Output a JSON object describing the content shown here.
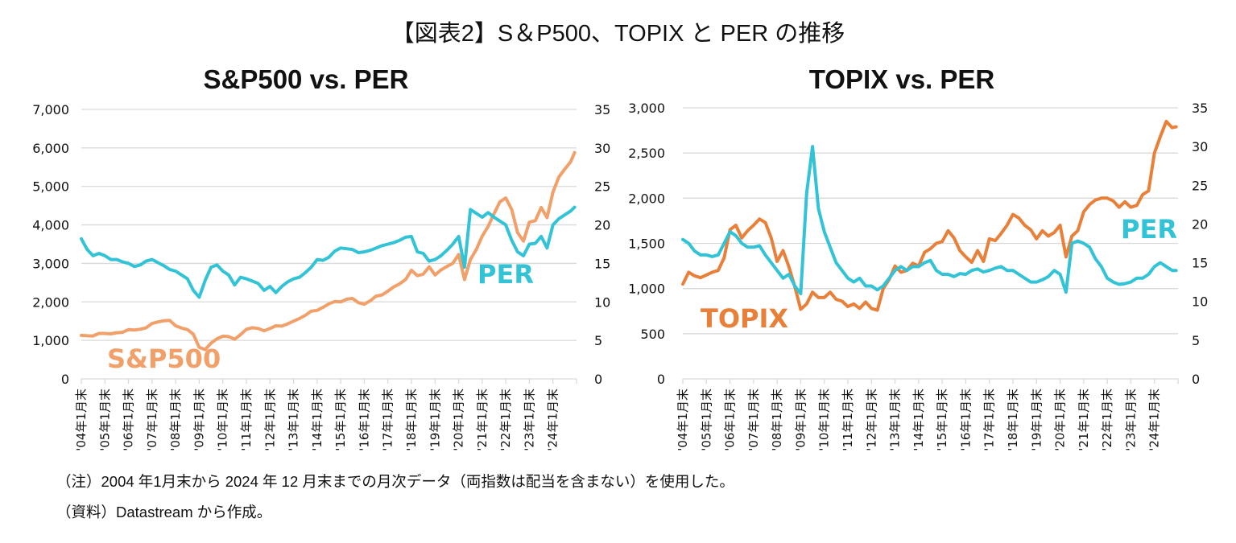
{
  "title": "【図表2】S＆P500、TOPIX と PER の推移",
  "notes": {
    "note": "（注）2004 年1月末から 2024 年 12 月末までの月次データ（両指数は配当を含まない）を使用した。",
    "source": "（資料）Datastream から作成。"
  },
  "colors": {
    "index_sp": "#f0a068",
    "index_topix": "#e8803a",
    "per": "#33c3d6",
    "grid": "#d9d9d9"
  },
  "chart_data": [
    {
      "type": "line",
      "title": "S&P500 vs. PER",
      "xlabel": "",
      "ylabel": "",
      "y2label": "",
      "x_tick_labels": [
        "'04年1月末",
        "'05年1月末",
        "'06年1月末",
        "'07年1月末",
        "'08年1月末",
        "'09年1月末",
        "'10年1月末",
        "'11年1月末",
        "'12年1月末",
        "'13年1月末",
        "'14年1月末",
        "'15年1月末",
        "'16年1月末",
        "'17年1月末",
        "'18年1月末",
        "'19年1月末",
        "'20年1月末",
        "'21年1月末",
        "'22年1月末",
        "'23年1月末",
        "'24年1月末"
      ],
      "y_tick_labels": [
        "0",
        "1,000",
        "2,000",
        "3,000",
        "4,000",
        "5,000",
        "6,000",
        "7,000"
      ],
      "y2_tick_labels": [
        "0",
        "5",
        "10",
        "15",
        "20",
        "25",
        "30",
        "35"
      ],
      "ylim": [
        0,
        7000
      ],
      "y2lim": [
        0,
        35
      ],
      "x_start": "2004-01",
      "x_end": "2024-12",
      "x_step_months": 3,
      "grid": true,
      "series": [
        {
          "name": "S&P500",
          "axis": "left",
          "label": "S&P500",
          "values": [
            1130,
            1120,
            1115,
            1180,
            1180,
            1170,
            1200,
            1210,
            1280,
            1270,
            1290,
            1330,
            1440,
            1480,
            1510,
            1520,
            1380,
            1320,
            1280,
            1160,
            820,
            760,
            930,
            1040,
            1110,
            1100,
            1030,
            1150,
            1290,
            1330,
            1310,
            1250,
            1310,
            1380,
            1370,
            1430,
            1500,
            1570,
            1650,
            1760,
            1780,
            1860,
            1950,
            2010,
            2000,
            2070,
            2090,
            1980,
            1940,
            2030,
            2150,
            2180,
            2280,
            2390,
            2470,
            2580,
            2820,
            2680,
            2720,
            2910,
            2700,
            2830,
            2920,
            3000,
            3230,
            2580,
            3100,
            3360,
            3710,
            3960,
            4290,
            4600,
            4700,
            4400,
            3800,
            3580,
            4070,
            4110,
            4450,
            4190,
            4850,
            5240,
            5450,
            5640,
            5880
          ],
          "color_key": "index_sp"
        },
        {
          "name": "PER",
          "axis": "right",
          "label": "PER",
          "values": [
            18.2,
            16.8,
            16.0,
            16.3,
            16.0,
            15.5,
            15.5,
            15.2,
            15.0,
            14.6,
            14.8,
            15.3,
            15.5,
            15.1,
            14.7,
            14.2,
            14.0,
            13.5,
            13.0,
            11.5,
            10.6,
            12.8,
            14.5,
            14.8,
            14.0,
            13.5,
            12.2,
            13.2,
            13.0,
            12.7,
            12.4,
            11.5,
            12.0,
            11.2,
            12.0,
            12.6,
            13.0,
            13.2,
            13.8,
            14.5,
            15.5,
            15.4,
            15.8,
            16.6,
            17.0,
            16.9,
            16.8,
            16.4,
            16.5,
            16.7,
            17.0,
            17.3,
            17.5,
            17.7,
            18.0,
            18.4,
            18.5,
            16.5,
            16.3,
            15.3,
            15.5,
            16.0,
            16.7,
            17.5,
            18.5,
            14.5,
            22.0,
            21.5,
            21.0,
            21.6,
            21.0,
            20.5,
            20.0,
            18.0,
            16.5,
            16.0,
            17.5,
            17.6,
            18.5,
            17.0,
            20.0,
            20.8,
            21.3,
            21.8,
            22.3
          ],
          "color_key": "per"
        }
      ]
    },
    {
      "type": "line",
      "title": "TOPIX vs. PER",
      "xlabel": "",
      "ylabel": "",
      "y2label": "",
      "x_tick_labels": [
        "'04年1月末",
        "'05年1月末",
        "'06年1月末",
        "'07年1月末",
        "'08年1月末",
        "'09年1月末",
        "'10年1月末",
        "'11年1月末",
        "'12年1月末",
        "'13年1月末",
        "'14年1月末",
        "'15年1月末",
        "'16年1月末",
        "'17年1月末",
        "'18年1月末",
        "'19年1月末",
        "'20年1月末",
        "'21年1月末",
        "'22年1月末",
        "'23年1月末",
        "'24年1月末"
      ],
      "y_tick_labels": [
        "0",
        "500",
        "1,000",
        "1,500",
        "2,000",
        "2,500",
        "3,000"
      ],
      "y2_tick_labels": [
        "0",
        "5",
        "10",
        "15",
        "20",
        "25",
        "30",
        "35"
      ],
      "ylim": [
        0,
        3000
      ],
      "y2lim": [
        0,
        35
      ],
      "x_start": "2004-01",
      "x_end": "2024-12",
      "x_step_months": 3,
      "grid": true,
      "series": [
        {
          "name": "TOPIX",
          "axis": "left",
          "label": "TOPIX",
          "values": [
            1050,
            1180,
            1140,
            1120,
            1150,
            1180,
            1200,
            1340,
            1650,
            1700,
            1560,
            1640,
            1700,
            1770,
            1730,
            1560,
            1300,
            1420,
            1240,
            1020,
            770,
            830,
            960,
            900,
            900,
            960,
            880,
            860,
            800,
            830,
            780,
            850,
            780,
            760,
            1000,
            1100,
            1250,
            1180,
            1200,
            1280,
            1250,
            1400,
            1440,
            1500,
            1520,
            1640,
            1560,
            1420,
            1350,
            1290,
            1420,
            1300,
            1550,
            1530,
            1610,
            1700,
            1820,
            1780,
            1700,
            1650,
            1550,
            1640,
            1580,
            1620,
            1700,
            1350,
            1580,
            1640,
            1850,
            1930,
            1980,
            2000,
            2000,
            1970,
            1900,
            1960,
            1900,
            1920,
            2040,
            2080,
            2500,
            2680,
            2850,
            2780,
            2790
          ],
          "color_key": "index_topix"
        },
        {
          "name": "PER",
          "axis": "right",
          "label": "PER",
          "values": [
            18.0,
            17.5,
            16.5,
            16.0,
            16.0,
            15.8,
            16.0,
            17.5,
            19.0,
            18.5,
            17.5,
            17.0,
            17.0,
            17.2,
            16.0,
            15.0,
            14.0,
            13.0,
            13.5,
            12.0,
            11.0,
            24.0,
            30.0,
            22.0,
            19.0,
            17.0,
            15.0,
            14.0,
            13.0,
            12.5,
            13.0,
            12.0,
            12.0,
            11.5,
            12.0,
            13.0,
            14.0,
            14.5,
            14.0,
            14.5,
            14.5,
            15.0,
            15.3,
            14.0,
            13.5,
            13.5,
            13.2,
            13.6,
            13.5,
            14.0,
            14.2,
            13.8,
            14.0,
            14.3,
            14.5,
            14.0,
            14.0,
            13.5,
            13.0,
            12.5,
            12.5,
            12.8,
            13.2,
            14.0,
            13.5,
            11.2,
            17.5,
            17.8,
            17.5,
            17.0,
            15.5,
            14.5,
            13.0,
            12.5,
            12.2,
            12.3,
            12.5,
            13.0,
            13.0,
            13.5,
            14.5,
            15.0,
            14.5,
            14.0,
            14.0
          ],
          "color_key": "per"
        }
      ]
    }
  ]
}
